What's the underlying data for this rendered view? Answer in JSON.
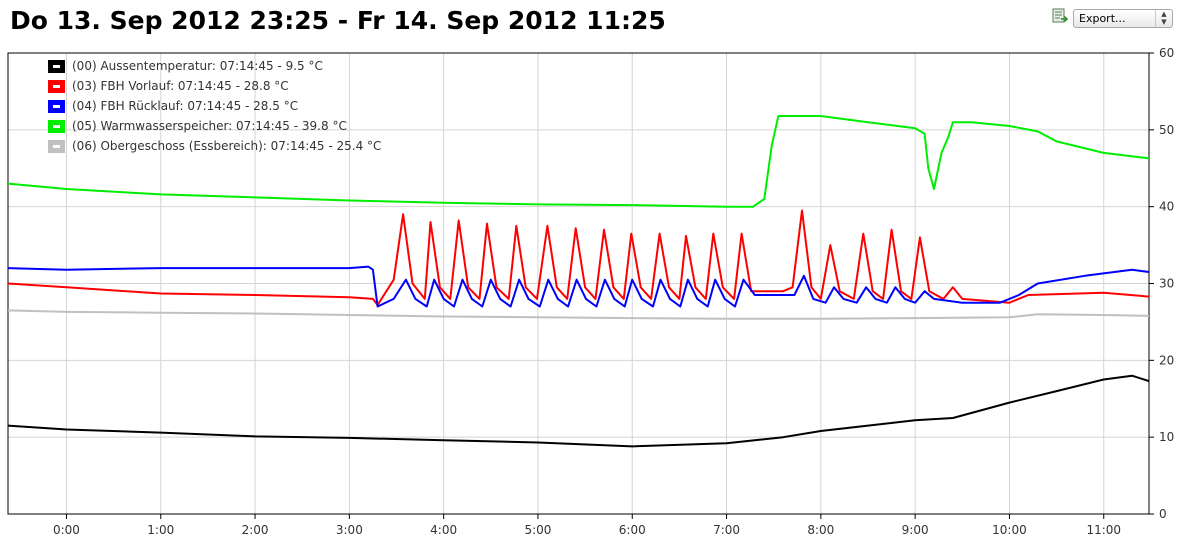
{
  "title": "Do 13. Sep 2012 23:25 - Fr 14. Sep 2012 11:25",
  "export": {
    "icon": "export-icon",
    "label": "Export..."
  },
  "chart_data": {
    "type": "line",
    "title": "Do 13. Sep 2012 23:25 - Fr 14. Sep 2012 11:25",
    "xlabel": "",
    "ylabel": "",
    "x_unit": "hours",
    "xlim": [
      -0.62,
      11.48
    ],
    "ylim": [
      0,
      60
    ],
    "x_ticks": [
      0,
      1,
      2,
      3,
      4,
      5,
      6,
      7,
      8,
      9,
      10,
      11
    ],
    "x_tick_labels": [
      "0:00",
      "1:00",
      "2:00",
      "3:00",
      "4:00",
      "5:00",
      "6:00",
      "7:00",
      "8:00",
      "9:00",
      "10:00",
      "11:00"
    ],
    "y_ticks": [
      0,
      10,
      20,
      30,
      40,
      50,
      60
    ],
    "y_tick_labels": [
      "0",
      "10",
      "20",
      "30",
      "40",
      "50",
      "60"
    ],
    "y_axis_side": "right",
    "grid": true,
    "legend_position": "top-left",
    "series": [
      {
        "name": "(00) Aussentemperatur: 07:14:45 - 9.5 °C",
        "color": "#000000",
        "points": [
          [
            -0.62,
            11.5
          ],
          [
            0,
            11.0
          ],
          [
            1,
            10.6
          ],
          [
            2,
            10.1
          ],
          [
            3,
            9.9
          ],
          [
            4,
            9.6
          ],
          [
            5,
            9.3
          ],
          [
            6,
            8.8
          ],
          [
            7,
            9.2
          ],
          [
            7.6,
            10.0
          ],
          [
            8,
            10.8
          ],
          [
            8.5,
            11.5
          ],
          [
            9,
            12.2
          ],
          [
            9.4,
            12.5
          ],
          [
            10,
            14.5
          ],
          [
            10.5,
            16.0
          ],
          [
            11,
            17.5
          ],
          [
            11.3,
            18.0
          ],
          [
            11.48,
            17.3
          ]
        ]
      },
      {
        "name": "(03) FBH Vorlauf: 07:14:45 - 28.8 °C",
        "color": "#ff0000",
        "points": [
          [
            -0.62,
            30.0
          ],
          [
            0,
            29.5
          ],
          [
            1,
            28.7
          ],
          [
            2,
            28.5
          ],
          [
            3,
            28.2
          ],
          [
            3.25,
            28.0
          ],
          [
            3.3,
            27.2
          ],
          [
            3.47,
            30.5
          ],
          [
            3.57,
            39.0
          ],
          [
            3.67,
            30.0
          ],
          [
            3.8,
            28.0
          ],
          [
            3.86,
            38.0
          ],
          [
            3.96,
            29.5
          ],
          [
            4.07,
            28.0
          ],
          [
            4.16,
            38.2
          ],
          [
            4.26,
            29.5
          ],
          [
            4.38,
            28.0
          ],
          [
            4.46,
            37.8
          ],
          [
            4.56,
            29.5
          ],
          [
            4.69,
            28.0
          ],
          [
            4.77,
            37.5
          ],
          [
            4.87,
            29.5
          ],
          [
            4.99,
            28.0
          ],
          [
            5.1,
            37.5
          ],
          [
            5.2,
            29.5
          ],
          [
            5.31,
            28.0
          ],
          [
            5.4,
            37.2
          ],
          [
            5.5,
            29.5
          ],
          [
            5.61,
            28.0
          ],
          [
            5.7,
            37.0
          ],
          [
            5.8,
            29.5
          ],
          [
            5.91,
            28.0
          ],
          [
            5.99,
            36.5
          ],
          [
            6.09,
            29.5
          ],
          [
            6.2,
            28.0
          ],
          [
            6.29,
            36.5
          ],
          [
            6.39,
            29.5
          ],
          [
            6.5,
            28.0
          ],
          [
            6.57,
            36.2
          ],
          [
            6.67,
            29.5
          ],
          [
            6.78,
            28.0
          ],
          [
            6.86,
            36.5
          ],
          [
            6.96,
            29.5
          ],
          [
            7.08,
            28.0
          ],
          [
            7.16,
            36.5
          ],
          [
            7.26,
            29.0
          ],
          [
            7.6,
            29.0
          ],
          [
            7.7,
            29.5
          ],
          [
            7.8,
            39.5
          ],
          [
            7.9,
            29.5
          ],
          [
            8.0,
            28.0
          ],
          [
            8.1,
            35.0
          ],
          [
            8.2,
            29.0
          ],
          [
            8.35,
            28.0
          ],
          [
            8.45,
            36.5
          ],
          [
            8.55,
            29.0
          ],
          [
            8.66,
            28.0
          ],
          [
            8.75,
            37.0
          ],
          [
            8.85,
            29.0
          ],
          [
            8.96,
            28.0
          ],
          [
            9.05,
            36.0
          ],
          [
            9.15,
            29.0
          ],
          [
            9.3,
            28.0
          ],
          [
            9.4,
            29.5
          ],
          [
            9.5,
            28.0
          ],
          [
            10.0,
            27.5
          ],
          [
            10.2,
            28.5
          ],
          [
            11.0,
            28.8
          ],
          [
            11.48,
            28.3
          ]
        ]
      },
      {
        "name": "(04) FBH Rücklauf: 07:14:45 - 28.5 °C",
        "color": "#0000ff",
        "points": [
          [
            -0.62,
            32.0
          ],
          [
            0,
            31.8
          ],
          [
            1,
            32.0
          ],
          [
            2,
            32.0
          ],
          [
            3,
            32.0
          ],
          [
            3.2,
            32.2
          ],
          [
            3.25,
            31.8
          ],
          [
            3.3,
            27.0
          ],
          [
            3.47,
            28.0
          ],
          [
            3.6,
            30.5
          ],
          [
            3.7,
            28.0
          ],
          [
            3.82,
            27.0
          ],
          [
            3.9,
            30.5
          ],
          [
            4.0,
            28.0
          ],
          [
            4.11,
            27.0
          ],
          [
            4.2,
            30.5
          ],
          [
            4.3,
            28.0
          ],
          [
            4.41,
            27.0
          ],
          [
            4.5,
            30.5
          ],
          [
            4.6,
            28.0
          ],
          [
            4.71,
            27.0
          ],
          [
            4.8,
            30.5
          ],
          [
            4.9,
            28.0
          ],
          [
            5.02,
            27.0
          ],
          [
            5.11,
            30.5
          ],
          [
            5.21,
            28.0
          ],
          [
            5.32,
            27.0
          ],
          [
            5.41,
            30.5
          ],
          [
            5.51,
            28.0
          ],
          [
            5.62,
            27.0
          ],
          [
            5.71,
            30.5
          ],
          [
            5.81,
            28.0
          ],
          [
            5.92,
            27.0
          ],
          [
            6.0,
            30.5
          ],
          [
            6.1,
            28.0
          ],
          [
            6.22,
            27.0
          ],
          [
            6.3,
            30.5
          ],
          [
            6.4,
            28.0
          ],
          [
            6.51,
            27.0
          ],
          [
            6.59,
            30.5
          ],
          [
            6.69,
            28.0
          ],
          [
            6.8,
            27.0
          ],
          [
            6.88,
            30.5
          ],
          [
            6.98,
            28.0
          ],
          [
            7.09,
            27.0
          ],
          [
            7.18,
            30.5
          ],
          [
            7.3,
            28.5
          ],
          [
            7.6,
            28.5
          ],
          [
            7.72,
            28.5
          ],
          [
            7.82,
            31.0
          ],
          [
            7.92,
            28.0
          ],
          [
            8.05,
            27.5
          ],
          [
            8.14,
            29.5
          ],
          [
            8.24,
            28.0
          ],
          [
            8.38,
            27.5
          ],
          [
            8.48,
            29.5
          ],
          [
            8.58,
            28.0
          ],
          [
            8.7,
            27.5
          ],
          [
            8.79,
            29.5
          ],
          [
            8.89,
            28.0
          ],
          [
            9.0,
            27.5
          ],
          [
            9.1,
            29.0
          ],
          [
            9.2,
            28.0
          ],
          [
            9.5,
            27.5
          ],
          [
            9.9,
            27.5
          ],
          [
            10.1,
            28.5
          ],
          [
            10.3,
            30.0
          ],
          [
            10.8,
            31.0
          ],
          [
            11.3,
            31.8
          ],
          [
            11.48,
            31.5
          ]
        ]
      },
      {
        "name": "(05) Warmwasserspeicher: 07:14:45 - 39.8 °C",
        "color": "#00ee00",
        "points": [
          [
            -0.62,
            43.0
          ],
          [
            0,
            42.3
          ],
          [
            1,
            41.6
          ],
          [
            2,
            41.2
          ],
          [
            3,
            40.8
          ],
          [
            4,
            40.5
          ],
          [
            5,
            40.3
          ],
          [
            6,
            40.2
          ],
          [
            7,
            40.0
          ],
          [
            7.28,
            40.0
          ],
          [
            7.4,
            41.0
          ],
          [
            7.48,
            48.0
          ],
          [
            7.55,
            51.8
          ],
          [
            8,
            51.8
          ],
          [
            8.5,
            51.0
          ],
          [
            9,
            50.2
          ],
          [
            9.1,
            49.5
          ],
          [
            9.14,
            45.0
          ],
          [
            9.2,
            42.3
          ],
          [
            9.28,
            47.0
          ],
          [
            9.35,
            49.0
          ],
          [
            9.4,
            51.0
          ],
          [
            9.6,
            51.0
          ],
          [
            10,
            50.5
          ],
          [
            10.3,
            49.8
          ],
          [
            10.5,
            48.5
          ],
          [
            11.0,
            47.0
          ],
          [
            11.48,
            46.3
          ]
        ]
      },
      {
        "name": "(06) Obergeschoss (Essbereich): 07:14:45 - 25.4 °C",
        "color": "#c0c0c0",
        "points": [
          [
            -0.62,
            26.5
          ],
          [
            0,
            26.3
          ],
          [
            1,
            26.2
          ],
          [
            2,
            26.1
          ],
          [
            3,
            25.9
          ],
          [
            4,
            25.7
          ],
          [
            5,
            25.6
          ],
          [
            6,
            25.5
          ],
          [
            7,
            25.4
          ],
          [
            8,
            25.4
          ],
          [
            9,
            25.5
          ],
          [
            10,
            25.6
          ],
          [
            10.3,
            26.0
          ],
          [
            11,
            25.9
          ],
          [
            11.48,
            25.8
          ]
        ]
      }
    ]
  }
}
